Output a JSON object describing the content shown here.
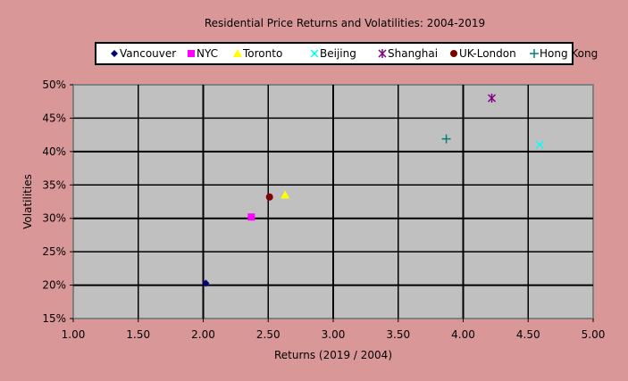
{
  "chart_data": {
    "type": "scatter",
    "title": "Residential Price Returns and Volatilities: 2004-2019",
    "xlabel": "Returns (2019 / 2004)",
    "ylabel": "Volatilities",
    "xlim": [
      1.0,
      5.0
    ],
    "ylim": [
      15,
      50
    ],
    "x_ticks": [
      "1.00",
      "1.50",
      "2.00",
      "2.50",
      "3.00",
      "3.50",
      "4.00",
      "4.50",
      "5.00"
    ],
    "y_ticks": [
      "15%",
      "20%",
      "25%",
      "30%",
      "35%",
      "40%",
      "45%",
      "50%"
    ],
    "grid": true,
    "legend_position": "top",
    "plot_background": "#c0c0c0",
    "background": "#da9797",
    "series": [
      {
        "name": "Vancouver",
        "marker": "diamond",
        "color": "#000080",
        "x": 2.02,
        "y": 20.3
      },
      {
        "name": "NYC",
        "marker": "square",
        "color": "#ff00ff",
        "x": 2.37,
        "y": 30.2
      },
      {
        "name": "Toronto",
        "marker": "triangle",
        "color": "#ffff00",
        "x": 2.63,
        "y": 33.5
      },
      {
        "name": "Beijing",
        "marker": "x",
        "color": "#00ffff",
        "x": 4.59,
        "y": 41.0
      },
      {
        "name": "Shanghai",
        "marker": "star",
        "color": "#800080",
        "x": 4.22,
        "y": 48.0
      },
      {
        "name": "UK-London",
        "marker": "circle",
        "color": "#800000",
        "x": 2.51,
        "y": 33.2
      },
      {
        "name": "Hong Kong",
        "marker": "plus",
        "color": "#008080",
        "x": 3.87,
        "y": 41.9
      }
    ]
  }
}
